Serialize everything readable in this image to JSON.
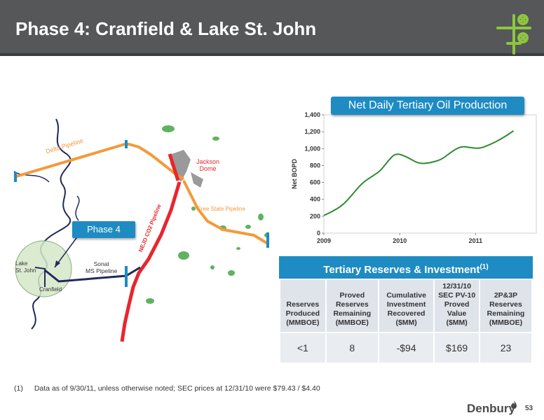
{
  "header": {
    "title": "Phase 4: Cranfield & Lake St. John"
  },
  "colors": {
    "header_bg": "#555759",
    "accent_blue": "#1e8bc3",
    "logo_green": "#8dc63f",
    "production_line": "#2e8b2e",
    "pipeline_orange": "#f39a3a",
    "pipeline_red": "#e8262d",
    "pipeline_navy": "#1f2a5c"
  },
  "map": {
    "labels": {
      "delta_pipeline": "Delta Pipeline",
      "jackson_dome": "Jackson\nDome",
      "free_state_pipeline": "Free State Pipeline",
      "nejd_pipeline": "NEJD CO2 Pipeline",
      "sonat": "Sonat\nMS Pipeline",
      "lake_st_john": "Lake\nSt. John",
      "cranfield": "Cranfield",
      "phase4": "Phase 4"
    }
  },
  "chart_data": {
    "type": "line",
    "title": "Net Daily Tertiary Oil Production",
    "ylabel": "Net BOPD",
    "xlabel": "",
    "ylim": [
      0,
      1400
    ],
    "yticks": [
      0,
      200,
      400,
      600,
      800,
      1000,
      1200,
      1400
    ],
    "ytick_labels": [
      "0",
      "200",
      "400",
      "600",
      "800",
      "1,000",
      "1,200",
      "1,400"
    ],
    "xlim": [
      2009,
      2011.8
    ],
    "xticks": [
      2009,
      2010,
      2011
    ],
    "xtick_labels": [
      "2009",
      "2010",
      "2011"
    ],
    "series": [
      {
        "x": [
          2009.0,
          2009.1,
          2009.25,
          2009.38,
          2009.5,
          2009.65,
          2009.75,
          2009.85,
          2009.95,
          2010.1,
          2010.25,
          2010.4,
          2010.55,
          2010.65,
          2010.8,
          2010.95,
          2011.05,
          2011.2,
          2011.35,
          2011.5
        ],
        "values": [
          210,
          250,
          330,
          460,
          590,
          680,
          740,
          860,
          950,
          900,
          820,
          830,
          870,
          940,
          1030,
          1010,
          1000,
          1050,
          1120,
          1210
        ]
      }
    ]
  },
  "table": {
    "title": "Tertiary Reserves & Investment",
    "title_sup": "(1)",
    "headers": [
      "Reserves Produced (MMBOE)",
      "Proved Reserves Remaining (MMBOE)",
      "Cumulative Investment Recovered ($MM)",
      "12/31/10 SEC PV-10 Proved Value ($MM)",
      "2P&3P Reserves Remaining (MMBOE)"
    ],
    "row": [
      "<1",
      "8",
      "-$94",
      "$169",
      "23"
    ]
  },
  "footnote": {
    "number": "(1)",
    "text": "Data as of 9/30/11, unless otherwise noted; SEC prices at 12/31/10 were $79.43 / $4.40"
  },
  "footer": {
    "brand": "Denbury",
    "page_number": "53"
  }
}
